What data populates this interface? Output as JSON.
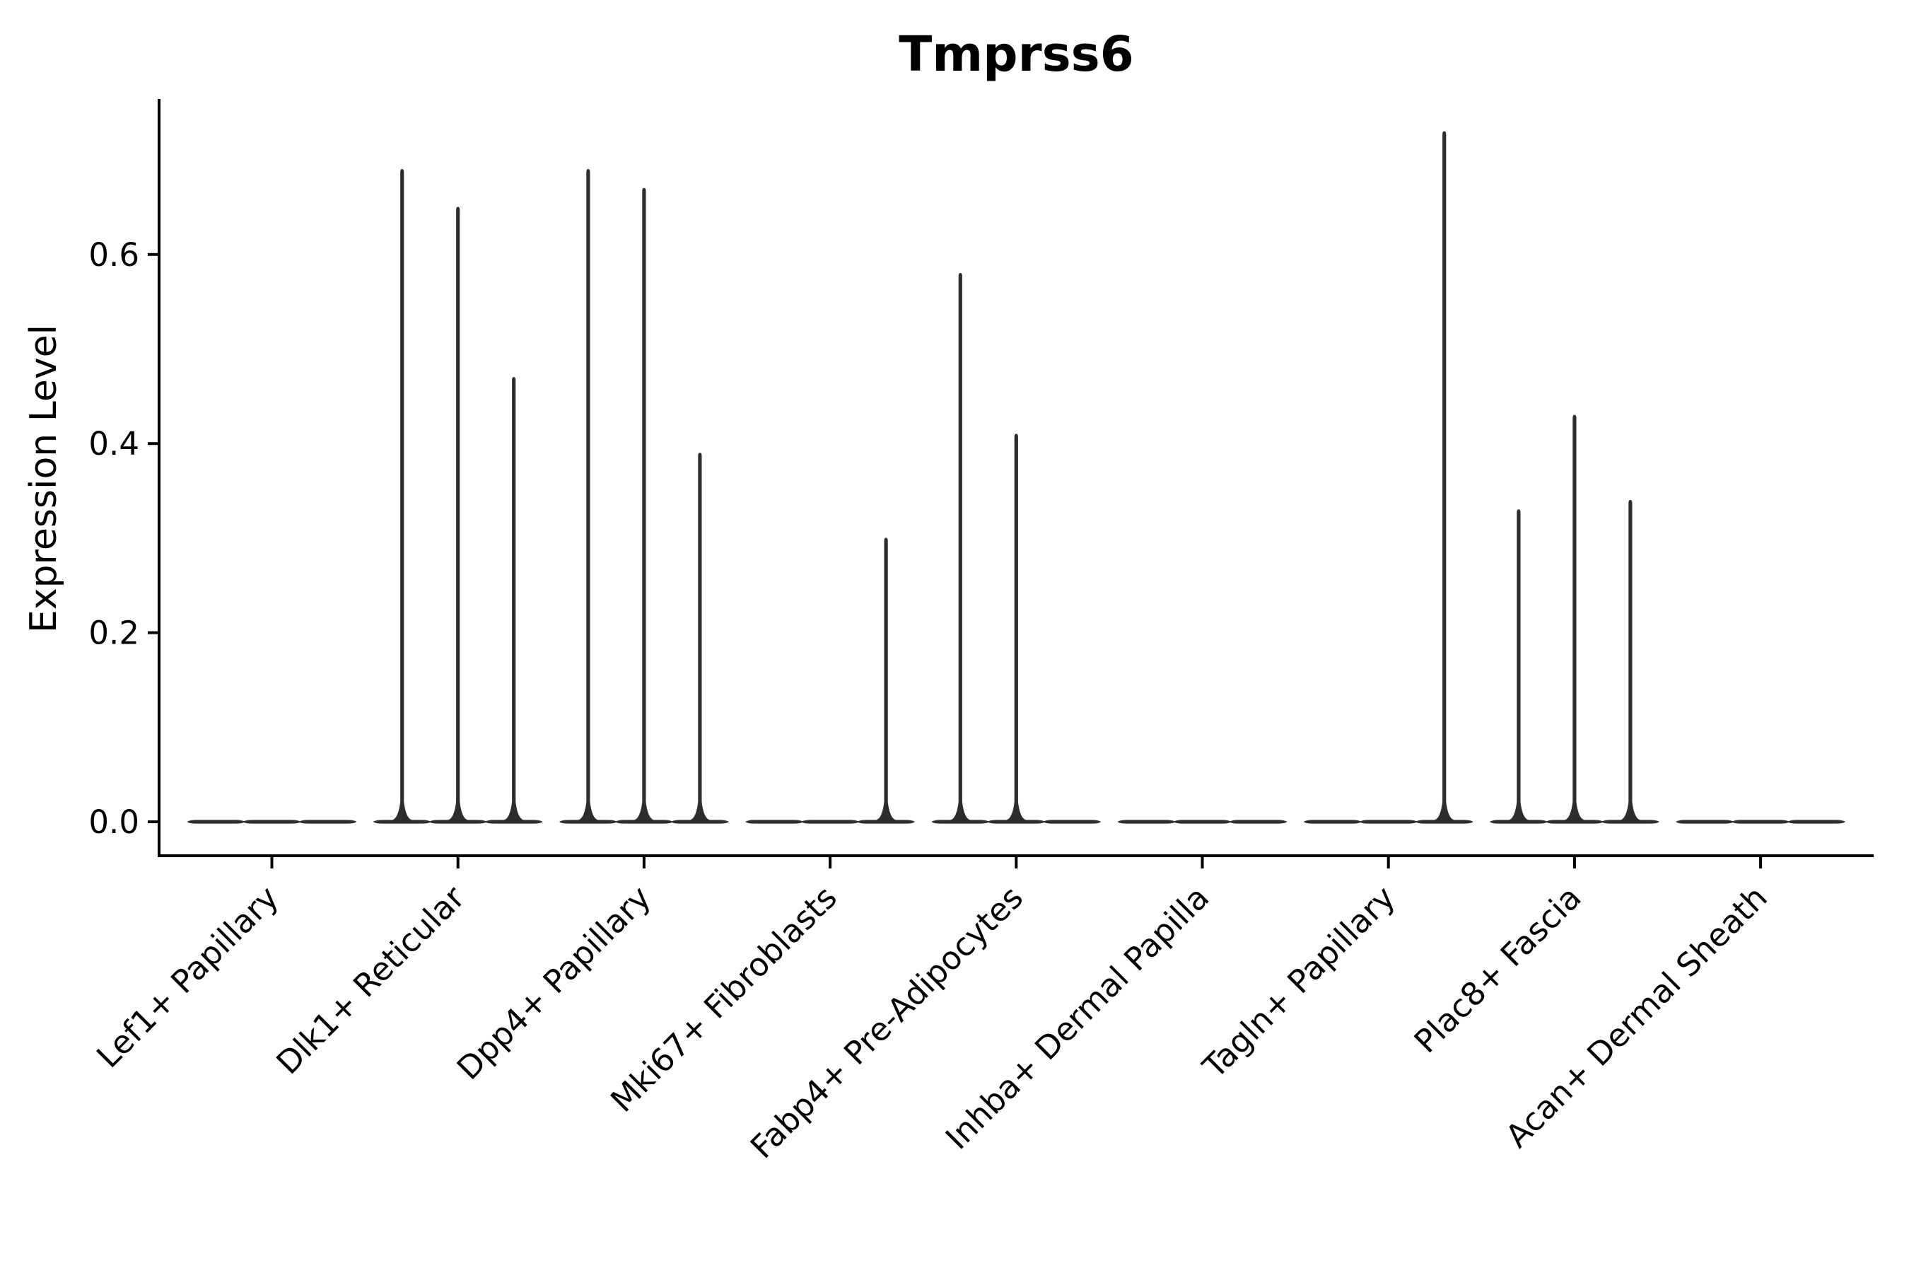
{
  "chart_data": {
    "type": "violin",
    "title": "Tmprss6",
    "ylabel": "Expression Level",
    "xlabel": "",
    "yticks": [
      0.0,
      0.2,
      0.4,
      0.6
    ],
    "ylim": [
      -0.036,
      0.764
    ],
    "grid": false,
    "legend_position": "none",
    "violin_color": "#2d2d2d",
    "axis_color": "#000000",
    "background_color": "#ffffff",
    "violins_per_category": 3,
    "categories": [
      "Lef1+ Papillary",
      "Dlk1+ Reticular",
      "Dpp4+ Papillary",
      "Mki67+ Fibroblasts",
      "Fabp4+ Pre-Adipocytes",
      "Inhba+ Dermal Papilla",
      "Tagln+ Papillary",
      "Plac8+ Fascia",
      "Acan+ Dermal Sheath"
    ],
    "series": [
      {
        "category": "Lef1+ Papillary",
        "peaks": [
          0,
          0,
          0
        ]
      },
      {
        "category": "Dlk1+ Reticular",
        "peaks": [
          0.69,
          0.65,
          0.47
        ]
      },
      {
        "category": "Dpp4+ Papillary",
        "peaks": [
          0.69,
          0.67,
          0.39
        ]
      },
      {
        "category": "Mki67+ Fibroblasts",
        "peaks": [
          0,
          0,
          0.3
        ]
      },
      {
        "category": "Fabp4+ Pre-Adipocytes",
        "peaks": [
          0.58,
          0.41,
          0
        ]
      },
      {
        "category": "Inhba+ Dermal Papilla",
        "peaks": [
          0,
          0,
          0
        ]
      },
      {
        "category": "Tagln+ Papillary",
        "peaks": [
          0,
          0,
          0.73
        ]
      },
      {
        "category": "Plac8+ Fascia",
        "peaks": [
          0.33,
          0.43,
          0.34
        ]
      },
      {
        "category": "Acan+ Dermal Sheath",
        "peaks": [
          0,
          0,
          0
        ]
      }
    ],
    "value_encoding": "peaks = maximum expression level reached by each of the 3 violins per category; 0 = violin flat at baseline"
  }
}
